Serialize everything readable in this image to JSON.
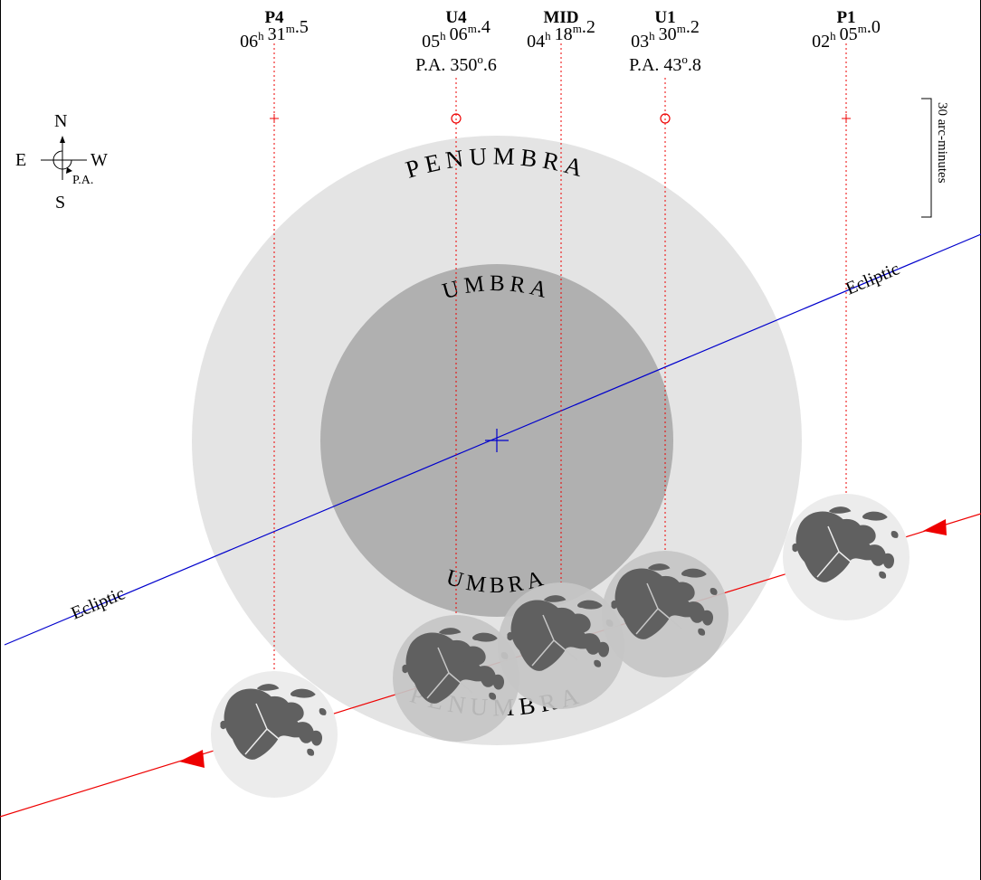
{
  "labels": {
    "penumbra": "PENUMBRA",
    "umbra": "UMBRA",
    "ecliptic": "Ecliptic",
    "scale": "30 arc-minutes"
  },
  "compass": {
    "north": "N",
    "south": "S",
    "east": "E",
    "west": "W",
    "pa": "P.A."
  },
  "contacts": [
    {
      "name": "P4",
      "h": "06",
      "m": "31",
      "frac": "5",
      "pa": null,
      "marker": "plus"
    },
    {
      "name": "U4",
      "h": "05",
      "m": "06",
      "frac": "4",
      "pa": {
        "deg": "350",
        "frac": "6"
      },
      "marker": "circle"
    },
    {
      "name": "MID",
      "h": "04",
      "m": "18",
      "frac": "2",
      "pa": null,
      "marker": "none"
    },
    {
      "name": "U1",
      "h": "03",
      "m": "30",
      "frac": "2",
      "pa": {
        "deg": "43",
        "frac": "8"
      },
      "marker": "circle"
    },
    {
      "name": "P1",
      "h": "02",
      "m": "05",
      "frac": "0",
      "pa": null,
      "marker": "plus"
    }
  ],
  "colors": {
    "penumbra": "#e4e4e4",
    "umbra": "#b0b0b0",
    "ecliptic": "#0000cc",
    "path": "#ee0000",
    "moon_light": "#ececec",
    "moon_shadowed": "#c6c6c6",
    "maria": "#5e5e5e"
  }
}
